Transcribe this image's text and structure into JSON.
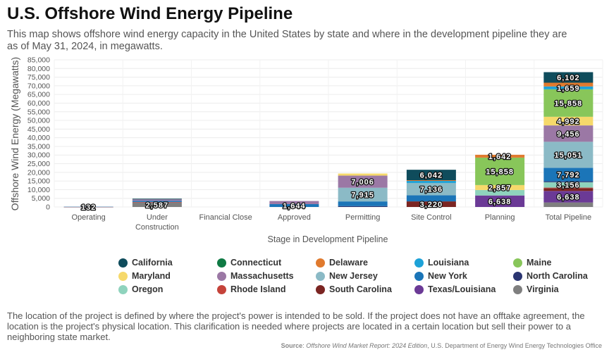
{
  "title": "U.S. Offshore Wind Energy Pipeline",
  "subtitle": "This map shows offshore wind energy capacity in the United States by state and where in the development pipeline they are as of May 31, 2024, in megawatts.",
  "footnote": "The location of the project is defined by where the project's power is intended to be sold. If the project does not have an offtake agreement, the location is the project's physical location. This clarification is needed where projects are located in a certain location but sell their power to a neighboring state market.",
  "source": {
    "label": "Source",
    "publication": "Offshore Wind Market Report: 2024 Edition",
    "agency": ", U.S. Department of Energy Wind Energy Technologies Office"
  },
  "chart_data": {
    "type": "bar",
    "stacked": true,
    "xlabel": "Stage in Development Pipeline",
    "ylabel": "Offshore Wind Energy (Megawatts)",
    "ylim": [
      0,
      85000
    ],
    "ytick_step": 5000,
    "grid": true,
    "legend_position": "bottom",
    "categories": [
      "Operating",
      "Under Construction",
      "Financial Close",
      "Approved",
      "Permitting",
      "Site Control",
      "Planning",
      "Total Pipeline"
    ],
    "category_labels": [
      [
        "Operating"
      ],
      [
        "Under",
        "Construction"
      ],
      [
        "Financial Close"
      ],
      [
        "Approved"
      ],
      [
        "Permitting"
      ],
      [
        "Site Control"
      ],
      [
        "Planning"
      ],
      [
        "Total Pipeline"
      ]
    ],
    "series": [
      {
        "name": "Virginia",
        "color": "#7f7f7f",
        "values": [
          12,
          2587,
          0,
          0,
          0,
          0,
          0,
          2600
        ]
      },
      {
        "name": "Texas/Louisiana",
        "color": "#6b3a96",
        "values": [
          0,
          0,
          0,
          0,
          0,
          0,
          6638,
          6638
        ]
      },
      {
        "name": "South Carolina",
        "color": "#7b2522",
        "values": [
          0,
          0,
          0,
          0,
          0,
          3220,
          0,
          1600
        ]
      },
      {
        "name": "Rhode Island",
        "color": "#c5433a",
        "values": [
          30,
          300,
          0,
          0,
          0,
          0,
          0,
          330
        ]
      },
      {
        "name": "Oregon",
        "color": "#8fd3bd",
        "values": [
          0,
          0,
          0,
          0,
          0,
          0,
          3156,
          3156
        ]
      },
      {
        "name": "North Carolina",
        "color": "#2b3571",
        "values": [
          0,
          0,
          0,
          0,
          500,
          0,
          0,
          500
        ]
      },
      {
        "name": "New York",
        "color": "#1b75b8",
        "values": [
          90,
          700,
          0,
          1644,
          2700,
          3500,
          0,
          7792
        ]
      },
      {
        "name": "New Jersey",
        "color": "#8bbac6",
        "values": [
          0,
          0,
          0,
          0,
          7915,
          7136,
          0,
          15051
        ]
      },
      {
        "name": "Massachusetts",
        "color": "#9b78a5",
        "values": [
          0,
          800,
          0,
          1800,
          7006,
          0,
          0,
          9456
        ]
      },
      {
        "name": "Maryland",
        "color": "#f6d96b",
        "values": [
          0,
          0,
          0,
          0,
          1200,
          0,
          2857,
          4992
        ]
      },
      {
        "name": "Maine",
        "color": "#88c65a",
        "values": [
          0,
          0,
          0,
          0,
          0,
          0,
          15858,
          15858
        ]
      },
      {
        "name": "Louisiana",
        "color": "#1da2d8",
        "values": [
          0,
          0,
          0,
          0,
          0,
          1200,
          0,
          1659
        ]
      },
      {
        "name": "Delaware",
        "color": "#e07a2e",
        "values": [
          0,
          0,
          0,
          0,
          0,
          400,
          1642,
          2150
        ]
      },
      {
        "name": "Connecticut",
        "color": "#0f7a44",
        "values": [
          0,
          0,
          0,
          0,
          0,
          0,
          0,
          0
        ]
      },
      {
        "name": "California",
        "color": "#0f4c5c",
        "values": [
          0,
          400,
          0,
          0,
          0,
          6042,
          0,
          6102
        ]
      }
    ],
    "labels": [
      {
        "category": 0,
        "series": "Virginia",
        "text": "132"
      },
      {
        "category": 1,
        "series": "Virginia",
        "text": "2,587"
      },
      {
        "category": 3,
        "series": "New York",
        "text": "1,644"
      },
      {
        "category": 4,
        "series": "New Jersey",
        "text": "7,915"
      },
      {
        "category": 4,
        "series": "Massachusetts",
        "text": "7,006"
      },
      {
        "category": 5,
        "series": "South Carolina",
        "text": "3,220"
      },
      {
        "category": 5,
        "series": "New Jersey",
        "text": "7,136"
      },
      {
        "category": 5,
        "series": "California",
        "text": "6,042"
      },
      {
        "category": 6,
        "series": "Texas/Louisiana",
        "text": "6,638"
      },
      {
        "category": 6,
        "series": "Maryland",
        "text": "2,857"
      },
      {
        "category": 6,
        "series": "Maine",
        "text": "15,858"
      },
      {
        "category": 6,
        "series": "Delaware",
        "text": "1,642"
      },
      {
        "category": 7,
        "series": "Texas/Louisiana",
        "text": "6,638"
      },
      {
        "category": 7,
        "series": "Oregon",
        "text": "3,156"
      },
      {
        "category": 7,
        "series": "New York",
        "text": "7,792"
      },
      {
        "category": 7,
        "series": "New Jersey",
        "text": "15,051"
      },
      {
        "category": 7,
        "series": "Massachusetts",
        "text": "9,456"
      },
      {
        "category": 7,
        "series": "Maryland",
        "text": "4,992"
      },
      {
        "category": 7,
        "series": "Maine",
        "text": "15,858"
      },
      {
        "category": 7,
        "series": "Louisiana",
        "text": "1,659"
      },
      {
        "category": 7,
        "series": "California",
        "text": "6,102"
      }
    ]
  },
  "legend": [
    {
      "name": "California",
      "color": "#0f4c5c"
    },
    {
      "name": "Connecticut",
      "color": "#0f7a44"
    },
    {
      "name": "Delaware",
      "color": "#e07a2e"
    },
    {
      "name": "Louisiana",
      "color": "#1da2d8"
    },
    {
      "name": "Maine",
      "color": "#88c65a"
    },
    {
      "name": "Maryland",
      "color": "#f6d96b"
    },
    {
      "name": "Massachusetts",
      "color": "#9b78a5"
    },
    {
      "name": "New Jersey",
      "color": "#8bbac6"
    },
    {
      "name": "New York",
      "color": "#1b75b8"
    },
    {
      "name": "North Carolina",
      "color": "#2b3571"
    },
    {
      "name": "Oregon",
      "color": "#8fd3bd"
    },
    {
      "name": "Rhode Island",
      "color": "#c5433a"
    },
    {
      "name": "South Carolina",
      "color": "#7b2522"
    },
    {
      "name": "Texas/Louisiana",
      "color": "#6b3a96"
    },
    {
      "name": "Virginia",
      "color": "#7f7f7f"
    }
  ]
}
